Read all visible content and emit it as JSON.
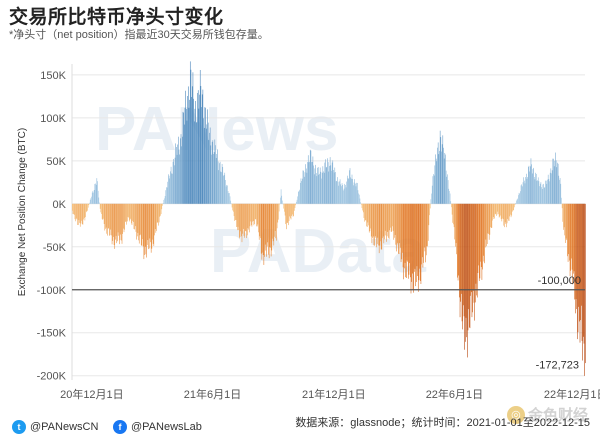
{
  "header": {
    "title": "交易所比特币净头寸变化",
    "subtitle": "*净头寸（net position）指最近30天交易所钱包存量。"
  },
  "watermarks": {
    "brand_top": "PANews",
    "brand_bottom": "PAData",
    "corner": "金色财经"
  },
  "footer": {
    "twitter_handle": "@PANewsCN",
    "facebook_handle": "@PANewsLab",
    "source": "数据来源：glassnode；统计时间：2021-01-01至2022-12-15"
  },
  "colors": {
    "positive": "#4a86bb",
    "positive_light": "#a9cde6",
    "negative_light": "#f6c27b",
    "negative": "#e0711d",
    "negative_dark": "#b8470f",
    "grid": "#e8e8e8",
    "threshold": "#555555"
  },
  "chart_data": {
    "type": "bar",
    "ylabel": "Exchange Net Position Change (BTC)",
    "xlabel": "",
    "ylim": [
      -205000,
      158000
    ],
    "yticks": [
      {
        "value": 150000,
        "label": "150K"
      },
      {
        "value": 100000,
        "label": "100K"
      },
      {
        "value": 50000,
        "label": "50K"
      },
      {
        "value": 0,
        "label": "0K"
      },
      {
        "value": -50000,
        "label": "-50K"
      },
      {
        "value": -100000,
        "label": "-100K"
      },
      {
        "value": -150000,
        "label": "-150K"
      },
      {
        "value": -200000,
        "label": "-200K"
      }
    ],
    "xticks": [
      "20年12月1日",
      "21年6月1日",
      "21年12月1日",
      "22年6月1日",
      "22年12月1日"
    ],
    "x_range": [
      "2020-11-01",
      "2022-12-15"
    ],
    "tick_dates": [
      "2020-12-01",
      "2021-06-01",
      "2021-12-01",
      "2022-06-01",
      "2022-12-01"
    ],
    "reference_line": {
      "value": -100000,
      "label": "-100,000"
    },
    "min_annotation": {
      "value": -172723,
      "label": "-172,723"
    },
    "keypoints": [
      {
        "date": "2020-11-01",
        "value": -8000
      },
      {
        "date": "2020-11-10",
        "value": -25000
      },
      {
        "date": "2020-11-20",
        "value": -18000
      },
      {
        "date": "2020-12-01",
        "value": 12000
      },
      {
        "date": "2020-12-08",
        "value": 28000
      },
      {
        "date": "2020-12-14",
        "value": -12000
      },
      {
        "date": "2020-12-22",
        "value": -30000
      },
      {
        "date": "2021-01-05",
        "value": -45000
      },
      {
        "date": "2021-01-15",
        "value": -38000
      },
      {
        "date": "2021-01-25",
        "value": -15000
      },
      {
        "date": "2021-02-05",
        "value": -32000
      },
      {
        "date": "2021-02-18",
        "value": -55000
      },
      {
        "date": "2021-03-01",
        "value": -48000
      },
      {
        "date": "2021-03-12",
        "value": -20000
      },
      {
        "date": "2021-03-25",
        "value": 25000
      },
      {
        "date": "2021-04-05",
        "value": 55000
      },
      {
        "date": "2021-04-15",
        "value": 80000
      },
      {
        "date": "2021-04-22",
        "value": 115000
      },
      {
        "date": "2021-04-28",
        "value": 145000
      },
      {
        "date": "2021-05-05",
        "value": 110000
      },
      {
        "date": "2021-05-15",
        "value": 130000
      },
      {
        "date": "2021-05-25",
        "value": 85000
      },
      {
        "date": "2021-06-05",
        "value": 60000
      },
      {
        "date": "2021-06-15",
        "value": 40000
      },
      {
        "date": "2021-06-25",
        "value": 15000
      },
      {
        "date": "2021-07-05",
        "value": -22000
      },
      {
        "date": "2021-07-15",
        "value": -40000
      },
      {
        "date": "2021-07-25",
        "value": -30000
      },
      {
        "date": "2021-08-05",
        "value": -18000
      },
      {
        "date": "2021-08-15",
        "value": -60000
      },
      {
        "date": "2021-08-25",
        "value": -55000
      },
      {
        "date": "2021-09-05",
        "value": -38000
      },
      {
        "date": "2021-09-12",
        "value": 15000
      },
      {
        "date": "2021-09-20",
        "value": -25000
      },
      {
        "date": "2021-10-01",
        "value": -12000
      },
      {
        "date": "2021-10-10",
        "value": 20000
      },
      {
        "date": "2021-10-20",
        "value": 45000
      },
      {
        "date": "2021-10-28",
        "value": 55000
      },
      {
        "date": "2021-11-05",
        "value": 35000
      },
      {
        "date": "2021-11-15",
        "value": 40000
      },
      {
        "date": "2021-11-25",
        "value": 50000
      },
      {
        "date": "2021-12-05",
        "value": 30000
      },
      {
        "date": "2021-12-15",
        "value": 18000
      },
      {
        "date": "2021-12-25",
        "value": 35000
      },
      {
        "date": "2022-01-05",
        "value": 20000
      },
      {
        "date": "2022-01-15",
        "value": -15000
      },
      {
        "date": "2022-01-25",
        "value": -35000
      },
      {
        "date": "2022-02-05",
        "value": -50000
      },
      {
        "date": "2022-02-15",
        "value": -42000
      },
      {
        "date": "2022-02-25",
        "value": -30000
      },
      {
        "date": "2022-03-05",
        "value": -45000
      },
      {
        "date": "2022-03-15",
        "value": -70000
      },
      {
        "date": "2022-03-25",
        "value": -85000
      },
      {
        "date": "2022-04-05",
        "value": -92000
      },
      {
        "date": "2022-04-12",
        "value": -75000
      },
      {
        "date": "2022-04-20",
        "value": -55000
      },
      {
        "date": "2022-04-28",
        "value": 25000
      },
      {
        "date": "2022-05-05",
        "value": 55000
      },
      {
        "date": "2022-05-10",
        "value": 80000
      },
      {
        "date": "2022-05-18",
        "value": 50000
      },
      {
        "date": "2022-05-25",
        "value": 10000
      },
      {
        "date": "2022-06-01",
        "value": -40000
      },
      {
        "date": "2022-06-08",
        "value": -100000
      },
      {
        "date": "2022-06-15",
        "value": -155000
      },
      {
        "date": "2022-06-22",
        "value": -140000
      },
      {
        "date": "2022-07-01",
        "value": -110000
      },
      {
        "date": "2022-07-10",
        "value": -80000
      },
      {
        "date": "2022-07-20",
        "value": -45000
      },
      {
        "date": "2022-07-28",
        "value": -20000
      },
      {
        "date": "2022-08-05",
        "value": -10000
      },
      {
        "date": "2022-08-15",
        "value": -25000
      },
      {
        "date": "2022-08-25",
        "value": -15000
      },
      {
        "date": "2022-09-05",
        "value": 10000
      },
      {
        "date": "2022-09-15",
        "value": 30000
      },
      {
        "date": "2022-09-25",
        "value": 45000
      },
      {
        "date": "2022-10-05",
        "value": 25000
      },
      {
        "date": "2022-10-15",
        "value": 20000
      },
      {
        "date": "2022-10-25",
        "value": 40000
      },
      {
        "date": "2022-11-02",
        "value": 55000
      },
      {
        "date": "2022-11-08",
        "value": 20000
      },
      {
        "date": "2022-11-12",
        "value": -30000
      },
      {
        "date": "2022-11-18",
        "value": -55000
      },
      {
        "date": "2022-11-25",
        "value": -80000
      },
      {
        "date": "2022-12-02",
        "value": -125000
      },
      {
        "date": "2022-12-08",
        "value": -150000
      },
      {
        "date": "2022-12-13",
        "value": -172723
      },
      {
        "date": "2022-12-15",
        "value": -160000
      }
    ]
  }
}
